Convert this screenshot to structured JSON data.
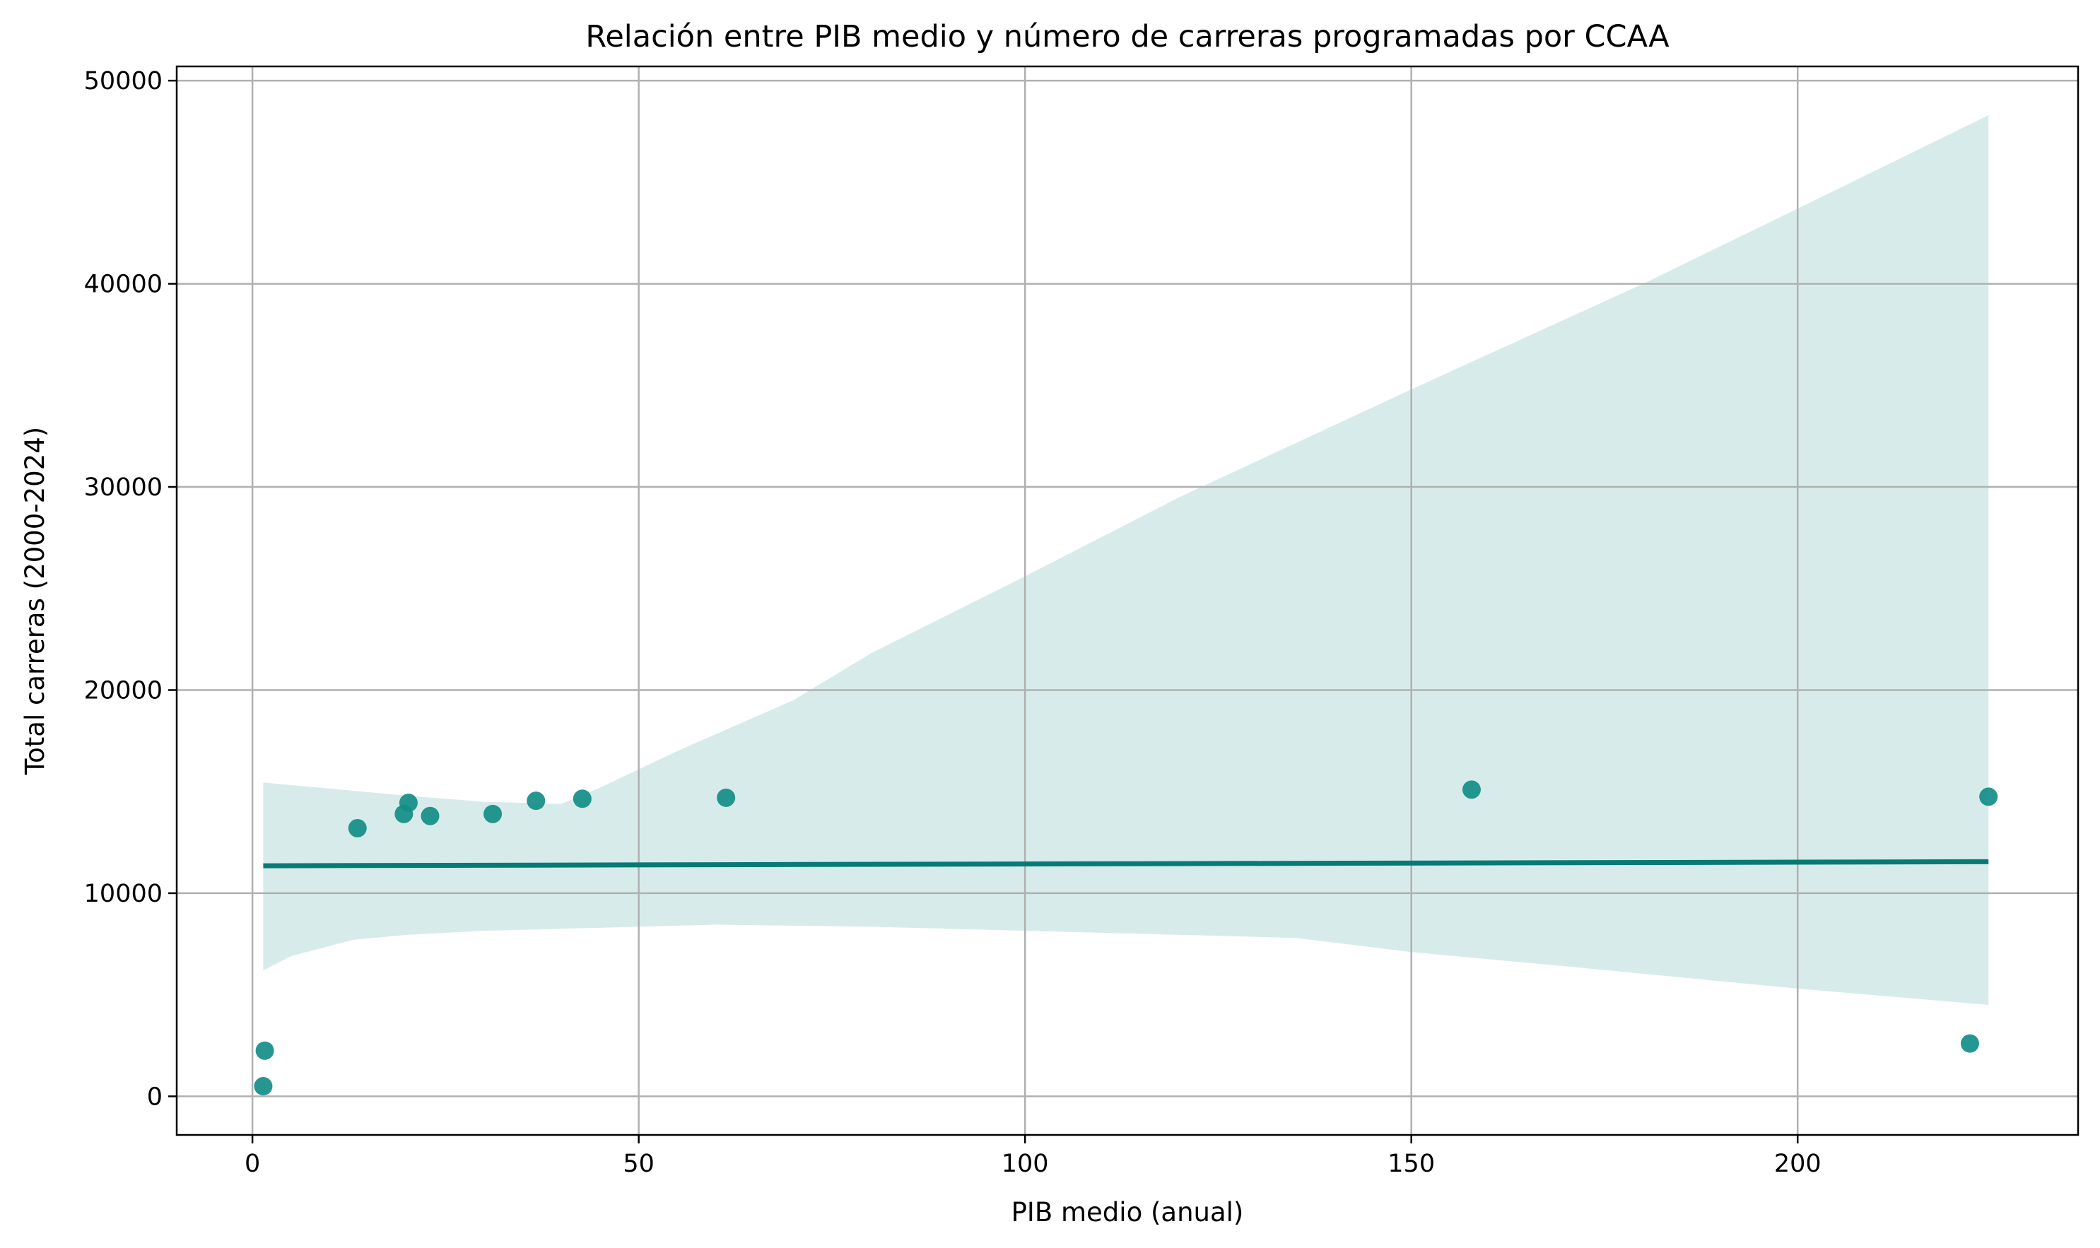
{
  "chart_data": {
    "type": "scatter",
    "title": "Relación entre PIB medio y número de carreras programadas por CCAA",
    "xlabel": "PIB medio (anual)",
    "ylabel": "Total carreras (2000-2024)",
    "xlim": [
      -9.8,
      236.3
    ],
    "ylim": [
      -1900,
      50700
    ],
    "xticks": [
      0,
      50,
      100,
      150,
      200
    ],
    "yticks": [
      0,
      10000,
      20000,
      30000,
      40000,
      50000
    ],
    "grid": true,
    "colors": {
      "points": "#138d87",
      "regression_line": "#087a76",
      "confidence_band": "#d7ecea"
    },
    "points": [
      {
        "x": 1.6,
        "y": 2250
      },
      {
        "x": 1.4,
        "y": 500
      },
      {
        "x": 13.6,
        "y": 13200
      },
      {
        "x": 19.6,
        "y": 13900
      },
      {
        "x": 20.2,
        "y": 14450
      },
      {
        "x": 23.0,
        "y": 13800
      },
      {
        "x": 31.1,
        "y": 13900
      },
      {
        "x": 36.7,
        "y": 14550
      },
      {
        "x": 42.7,
        "y": 14650
      },
      {
        "x": 61.3,
        "y": 14700
      },
      {
        "x": 157.8,
        "y": 15100
      },
      {
        "x": 222.3,
        "y": 2600
      },
      {
        "x": 224.7,
        "y": 14750
      }
    ],
    "regression_line": [
      {
        "x": 1.4,
        "y": 11350
      },
      {
        "x": 224.7,
        "y": 11550
      }
    ],
    "confidence_band": {
      "upper": [
        {
          "x": 1.4,
          "y": 15450
        },
        {
          "x": 10,
          "y": 15150
        },
        {
          "x": 20,
          "y": 14800
        },
        {
          "x": 30,
          "y": 14500
        },
        {
          "x": 40,
          "y": 14400
        },
        {
          "x": 45,
          "y": 15200
        },
        {
          "x": 55,
          "y": 17000
        },
        {
          "x": 70,
          "y": 19500
        },
        {
          "x": 80,
          "y": 21800
        },
        {
          "x": 100,
          "y": 25600
        },
        {
          "x": 120,
          "y": 29500
        },
        {
          "x": 150,
          "y": 34800
        },
        {
          "x": 180,
          "y": 40000
        },
        {
          "x": 200,
          "y": 43700
        },
        {
          "x": 224.7,
          "y": 48300
        }
      ],
      "lower": [
        {
          "x": 1.4,
          "y": 6200
        },
        {
          "x": 5,
          "y": 6900
        },
        {
          "x": 13,
          "y": 7700
        },
        {
          "x": 20,
          "y": 7950
        },
        {
          "x": 30,
          "y": 8150
        },
        {
          "x": 50,
          "y": 8350
        },
        {
          "x": 60,
          "y": 8450
        },
        {
          "x": 80,
          "y": 8350
        },
        {
          "x": 100,
          "y": 8150
        },
        {
          "x": 120,
          "y": 7950
        },
        {
          "x": 135,
          "y": 7800
        },
        {
          "x": 150,
          "y": 7100
        },
        {
          "x": 170,
          "y": 6400
        },
        {
          "x": 200,
          "y": 5300
        },
        {
          "x": 224.7,
          "y": 4500
        }
      ]
    }
  }
}
